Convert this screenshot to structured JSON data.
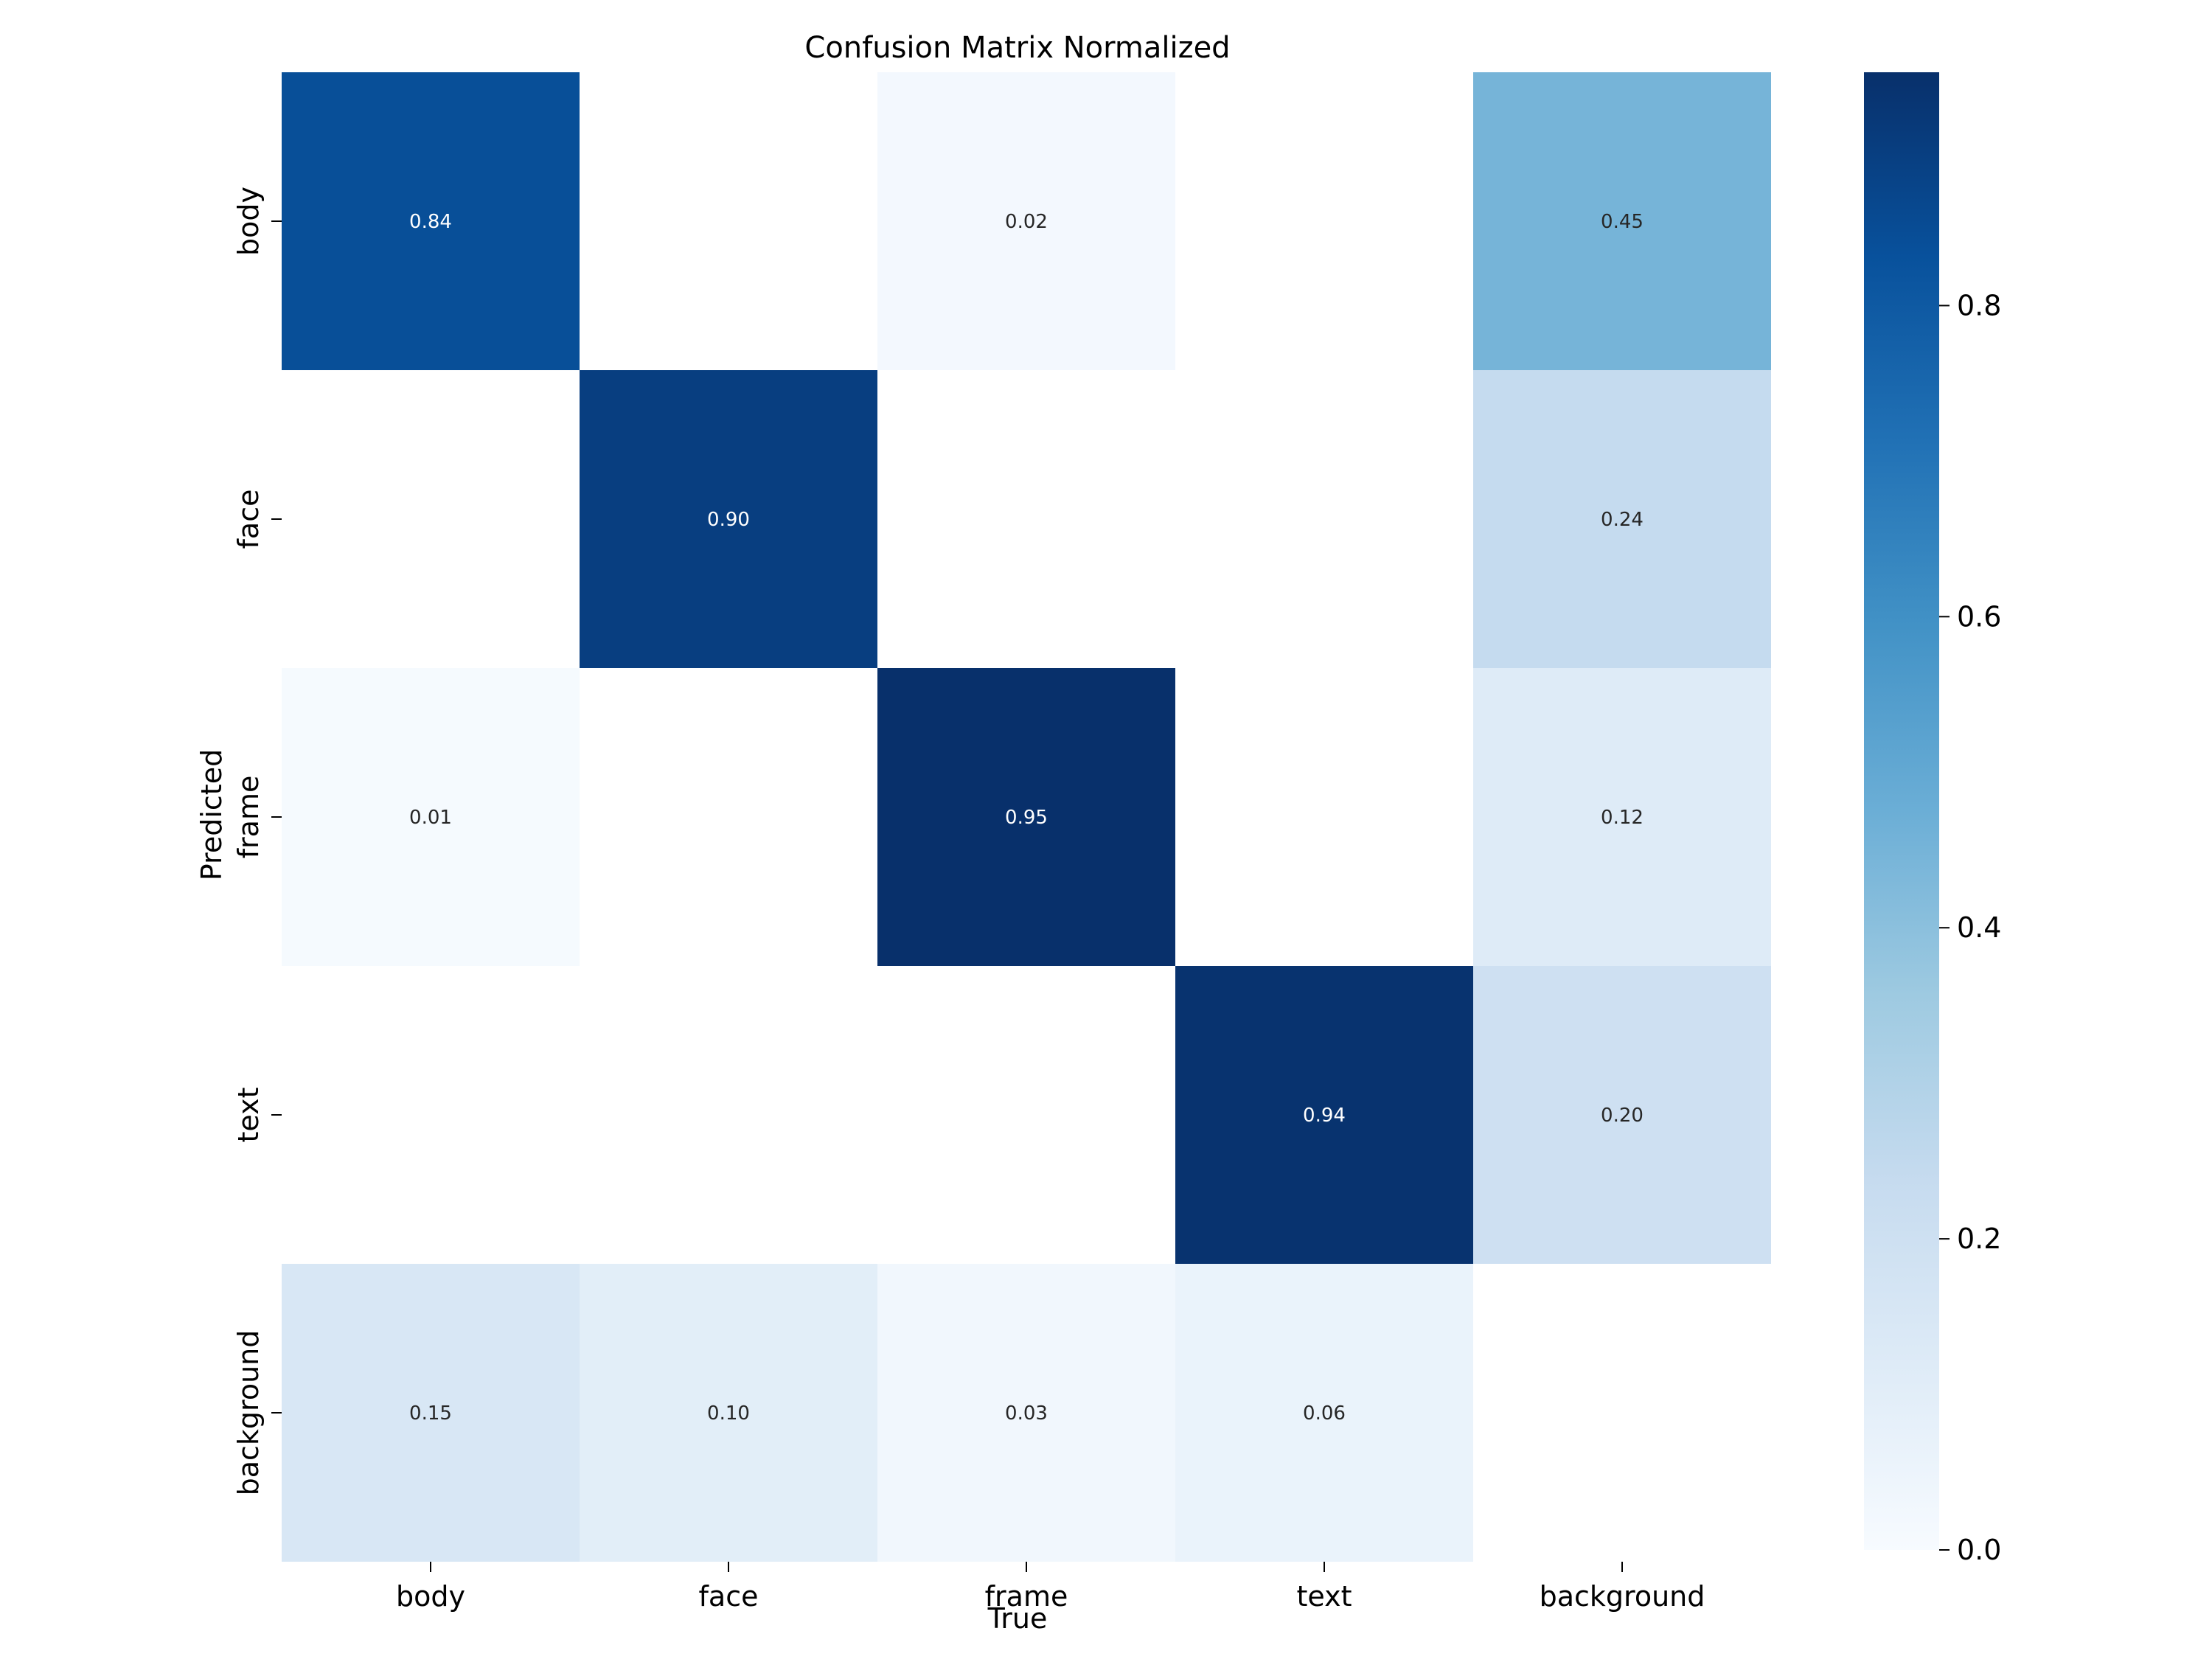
{
  "chart_data": {
    "type": "heatmap",
    "title": "Confusion Matrix Normalized",
    "xlabel": "True",
    "ylabel": "Predicted",
    "x_categories": [
      "body",
      "face",
      "frame",
      "text",
      "background"
    ],
    "y_categories": [
      "body",
      "face",
      "frame",
      "text",
      "background"
    ],
    "values": [
      [
        0.84,
        null,
        0.02,
        null,
        0.45
      ],
      [
        null,
        0.9,
        null,
        null,
        0.24
      ],
      [
        0.01,
        null,
        0.95,
        null,
        0.12
      ],
      [
        null,
        null,
        null,
        0.94,
        0.2
      ],
      [
        0.15,
        0.1,
        0.03,
        0.06,
        null
      ]
    ],
    "cell_labels": [
      [
        "0.84",
        "",
        "0.02",
        "",
        "0.45"
      ],
      [
        "",
        "0.90",
        "",
        "",
        "0.24"
      ],
      [
        "0.01",
        "",
        "0.95",
        "",
        "0.12"
      ],
      [
        "",
        "",
        "",
        "0.94",
        "0.20"
      ],
      [
        "0.15",
        "0.10",
        "0.03",
        "0.06",
        ""
      ]
    ],
    "colormap": "Blues",
    "colorbar": {
      "range": [
        0,
        0.95
      ],
      "ticks": [
        0.0,
        0.2,
        0.4,
        0.6,
        0.8
      ],
      "tick_labels": [
        "0.0",
        "0.2",
        "0.4",
        "0.6",
        "0.8"
      ]
    },
    "grid": false,
    "legend": "colorbar-right"
  }
}
